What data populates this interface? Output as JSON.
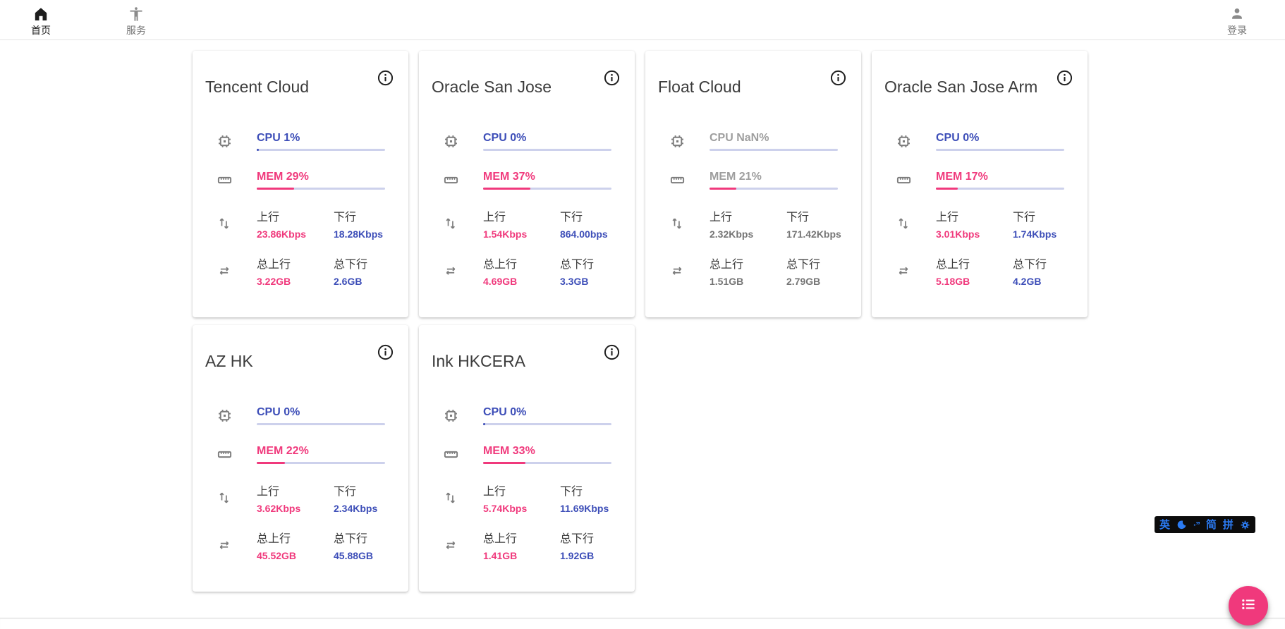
{
  "nav": {
    "home": {
      "label": "首页",
      "icon": "home-icon"
    },
    "services": {
      "label": "服务",
      "icon": "accessibility-icon"
    },
    "login": {
      "label": "登录",
      "icon": "person-icon"
    }
  },
  "labels": {
    "up": "上行",
    "down": "下行",
    "total_up": "总上行",
    "total_down": "总下行"
  },
  "servers": [
    {
      "name": "Tencent Cloud",
      "muted": false,
      "cpu_label": "CPU 1%",
      "cpu_fill": 1.5,
      "mem_label": "MEM 29%",
      "mem_fill": 29,
      "up": "23.86Kbps",
      "down": "18.28Kbps",
      "total_up": "3.22GB",
      "total_down": "2.6GB"
    },
    {
      "name": "Oracle San Jose",
      "muted": false,
      "cpu_label": "CPU 0%",
      "cpu_fill": 0,
      "mem_label": "MEM 37%",
      "mem_fill": 37,
      "up": "1.54Kbps",
      "down": "864.00bps",
      "total_up": "4.69GB",
      "total_down": "3.3GB"
    },
    {
      "name": "Float Cloud",
      "muted": true,
      "cpu_label": "CPU NaN%",
      "cpu_fill": 0,
      "mem_label": "MEM 21%",
      "mem_fill": 21,
      "up": "2.32Kbps",
      "down": "171.42Kbps",
      "total_up": "1.51GB",
      "total_down": "2.79GB"
    },
    {
      "name": "Oracle San Jose Arm",
      "muted": false,
      "cpu_label": "CPU 0%",
      "cpu_fill": 0,
      "mem_label": "MEM 17%",
      "mem_fill": 17,
      "up": "3.01Kbps",
      "down": "1.74Kbps",
      "total_up": "5.18GB",
      "total_down": "4.2GB"
    },
    {
      "name": "AZ HK",
      "muted": false,
      "cpu_label": "CPU 0%",
      "cpu_fill": 0,
      "mem_label": "MEM 22%",
      "mem_fill": 22,
      "up": "3.62Kbps",
      "down": "2.34Kbps",
      "total_up": "45.52GB",
      "total_down": "45.88GB"
    },
    {
      "name": "Ink HKCERA",
      "muted": false,
      "cpu_label": "CPU 0%",
      "cpu_fill": 1.5,
      "mem_label": "MEM 33%",
      "mem_fill": 33,
      "up": "5.74Kbps",
      "down": "11.69Kbps",
      "total_up": "1.41GB",
      "total_down": "1.92GB"
    }
  ],
  "ime": {
    "english": "英",
    "punctuation": "·”",
    "simplified": "简",
    "pinyin": "拼"
  },
  "colors": {
    "accent_pink": "#f0397c",
    "accent_blue": "#3d4eb8",
    "bar_track": "#cdd1ec",
    "muted_text": "#757575"
  }
}
